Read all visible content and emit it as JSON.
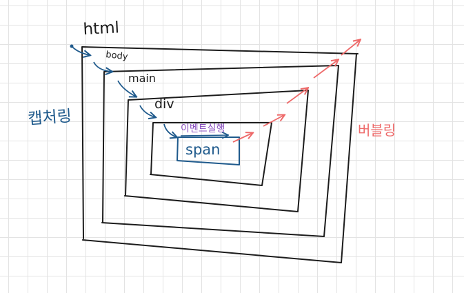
{
  "labels": {
    "html": "html",
    "body": "body",
    "main": "main",
    "div": "div",
    "span": "span",
    "event": "이벤트실행",
    "capturing": "캡처링",
    "bubbling": "버블링"
  },
  "colors": {
    "ink": "#1c1c1c",
    "capture": "#1f5a8c",
    "bubble": "#ee6a6a",
    "event": "#8a4fc0",
    "span_box": "#1f5a8c"
  }
}
